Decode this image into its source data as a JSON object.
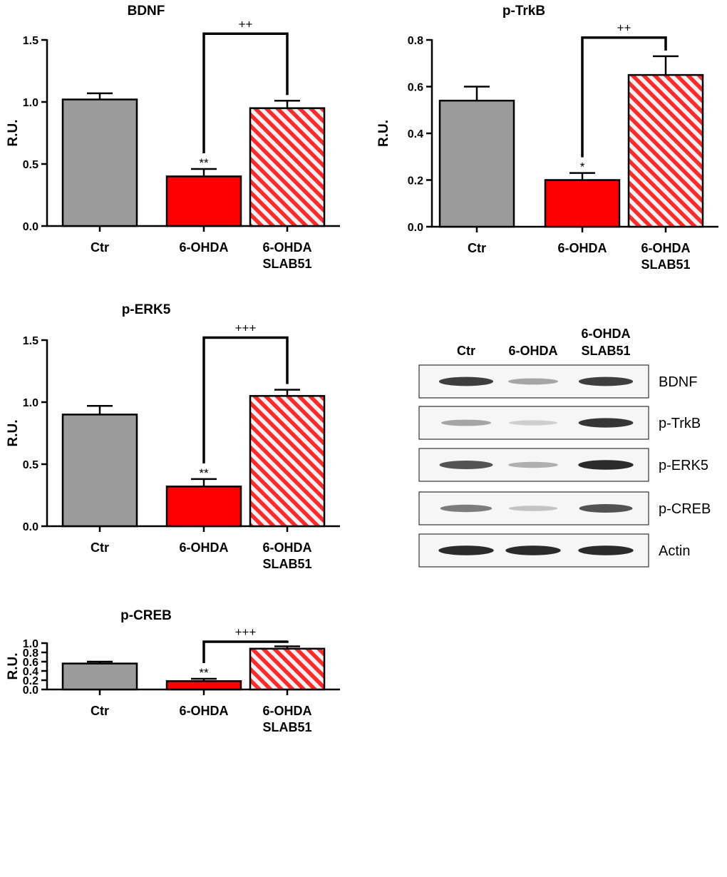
{
  "colors": {
    "ctr": "#9b9b9b",
    "ohda": "#ff0000",
    "ohda_slab51_stripe_1": "#ff2a2a",
    "ohda_slab51_stripe_2": "#f2f2f2",
    "axis": "#000000"
  },
  "chart_data": [
    {
      "id": "bdnf",
      "type": "bar",
      "title": "BDNF",
      "ylabel": "R.U.",
      "ylim": [
        0,
        1.5
      ],
      "yticks": [
        "0.0",
        "0.5",
        "1.0",
        "1.5"
      ],
      "categories": [
        [
          "Ctr"
        ],
        [
          "6-OHDA"
        ],
        [
          "6-OHDA",
          "SLAB51"
        ]
      ],
      "values": [
        1.02,
        0.4,
        0.95
      ],
      "errors": [
        0.05,
        0.06,
        0.06
      ],
      "stars": [
        "",
        "**",
        ""
      ],
      "bracket": {
        "from": 1,
        "to": 2,
        "label": "++",
        "level": 1.55
      }
    },
    {
      "id": "ptrkb",
      "type": "bar",
      "title": "p-TrkB",
      "ylabel": "R.U.",
      "ylim": [
        0,
        0.8
      ],
      "yticks": [
        "0.0",
        "0.2",
        "0.4",
        "0.6",
        "0.8"
      ],
      "categories": [
        [
          "Ctr"
        ],
        [
          "6-OHDA"
        ],
        [
          "6-OHDA",
          "SLAB51"
        ]
      ],
      "values": [
        0.54,
        0.2,
        0.65
      ],
      "errors": [
        0.06,
        0.03,
        0.08
      ],
      "stars": [
        "",
        "*",
        ""
      ],
      "bracket": {
        "from": 1,
        "to": 2,
        "label": "++",
        "level": 0.81
      }
    },
    {
      "id": "perk5",
      "type": "bar",
      "title": "p-ERK5",
      "ylabel": "R.U.",
      "ylim": [
        0,
        1.5
      ],
      "yticks": [
        "0.0",
        "0.5",
        "1.0",
        "1.5"
      ],
      "categories": [
        [
          "Ctr"
        ],
        [
          "6-OHDA"
        ],
        [
          "6-OHDA",
          "SLAB51"
        ]
      ],
      "values": [
        0.9,
        0.32,
        1.05
      ],
      "errors": [
        0.07,
        0.06,
        0.05
      ],
      "stars": [
        "",
        "**",
        ""
      ],
      "bracket": {
        "from": 1,
        "to": 2,
        "label": "+++",
        "level": 1.52
      }
    },
    {
      "id": "pcreb",
      "type": "bar",
      "title": "p-CREB",
      "ylabel": "R.U.",
      "ylim": [
        0,
        1.0
      ],
      "yticks": [
        "0.0",
        "0.2",
        "0.4",
        "0.6",
        "0.8",
        "1.0"
      ],
      "categories": [
        [
          "Ctr"
        ],
        [
          "6-OHDA"
        ],
        [
          "6-OHDA",
          "SLAB51"
        ]
      ],
      "values": [
        0.56,
        0.18,
        0.88
      ],
      "errors": [
        0.04,
        0.05,
        0.05
      ],
      "stars": [
        "",
        "**",
        ""
      ],
      "bracket": {
        "from": 1,
        "to": 2,
        "label": "+++",
        "level": 1.03
      }
    }
  ],
  "western_blot": {
    "columns": [
      [
        "Ctr"
      ],
      [
        "6-OHDA"
      ],
      [
        "6-OHDA",
        "SLAB51"
      ]
    ],
    "rows": [
      {
        "label": "BDNF",
        "intensity": [
          0.85,
          0.35,
          0.85
        ]
      },
      {
        "label": "p-TrkB",
        "intensity": [
          0.35,
          0.15,
          0.9
        ]
      },
      {
        "label": "p-ERK5",
        "intensity": [
          0.75,
          0.3,
          0.95
        ]
      },
      {
        "label": "p-CREB",
        "intensity": [
          0.55,
          0.2,
          0.75
        ]
      },
      {
        "label": "Actin",
        "intensity": [
          0.95,
          0.95,
          0.95
        ]
      }
    ]
  }
}
